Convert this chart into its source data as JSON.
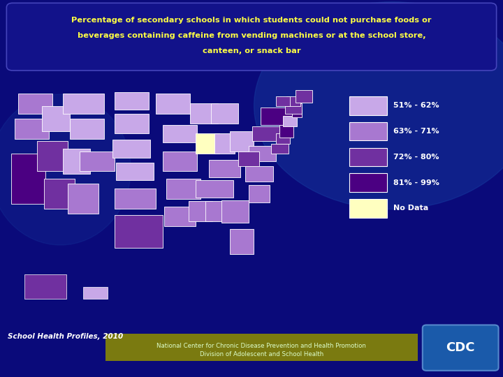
{
  "title_line1": "Percentage of secondary schools in which students could not purchase foods or",
  "title_line2": "beverages containing caffeine from vending machines or at the school store,",
  "title_line3": "canteen, or snack bar",
  "title_color": "#FFFF44",
  "bg_color": "#0a0a7a",
  "bg_highlight": "#1a4aaa",
  "title_box_color": "#12128a",
  "title_box_edge": "#4444bb",
  "legend_labels": [
    "51% - 62%",
    "63% - 71%",
    "72% - 80%",
    "81% - 99%",
    "No Data"
  ],
  "legend_colors": [
    "#c8a8e8",
    "#a878d0",
    "#7030a0",
    "#4b0082",
    "#ffffc0"
  ],
  "footer_text1": "School Health Profiles, 2010",
  "footer_text2": "National Center for Chronic Disease Prevention and Health Promotion",
  "footer_text3": "Division of Adolescent and School Health",
  "footer_bar_color": "#7a7a10",
  "cdc_box_color": "#1a5aaa",
  "state_colors": {
    "Alabama": "#a878d0",
    "Alaska": "#7030a0",
    "Arizona": "#7030a0",
    "Arkansas": "#a878d0",
    "California": "#4b0082",
    "Colorado": "#a878d0",
    "Connecticut": "#c8a8e8",
    "Delaware": "#7030a0",
    "Florida": "#a878d0",
    "Georgia": "#a878d0",
    "Hawaii": "#c8a8e8",
    "Idaho": "#c8a8e8",
    "Illinois": "#ffffc0",
    "Indiana": "#c8a8e8",
    "Iowa": "#c8a8e8",
    "Kansas": "#c8a8e8",
    "Kentucky": "#a878d0",
    "Louisiana": "#a878d0",
    "Maine": "#7030a0",
    "Maryland": "#7030a0",
    "Massachusetts": "#7030a0",
    "Michigan": "#c8a8e8",
    "Minnesota": "#c8a8e8",
    "Mississippi": "#a878d0",
    "Missouri": "#a878d0",
    "Montana": "#c8a8e8",
    "Nebraska": "#c8a8e8",
    "Nevada": "#7030a0",
    "New Hampshire": "#7030a0",
    "New Jersey": "#4b0082",
    "New Mexico": "#a878d0",
    "New York": "#4b0082",
    "North Carolina": "#a878d0",
    "North Dakota": "#c8a8e8",
    "Ohio": "#c8a8e8",
    "Oklahoma": "#a878d0",
    "Oregon": "#a878d0",
    "Pennsylvania": "#7030a0",
    "Rhode Island": "#4b0082",
    "South Carolina": "#a878d0",
    "South Dakota": "#c8a8e8",
    "Tennessee": "#a878d0",
    "Texas": "#7030a0",
    "Utah": "#c8a8e8",
    "Vermont": "#7030a0",
    "Virginia": "#a878d0",
    "Washington": "#a878d0",
    "West Virginia": "#7030a0",
    "Wisconsin": "#c8a8e8",
    "Wyoming": "#c8a8e8",
    "District of Columbia": "#4b0082"
  }
}
